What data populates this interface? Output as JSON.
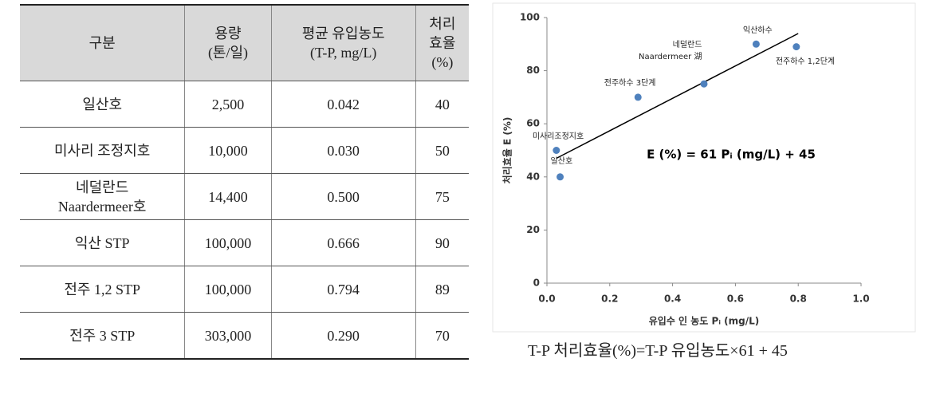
{
  "table": {
    "header": [
      "구분",
      "용량\n(톤/일)",
      "평균 유입농도\n(T-P, mg/L)",
      "처리\n효율\n(%)"
    ],
    "rows": [
      [
        "일산호",
        "2,500",
        "0.042",
        "40"
      ],
      [
        "미사리 조정지호",
        "10,000",
        "0.030",
        "50"
      ],
      [
        "네덜란드\nNaardermeer호",
        "14,400",
        "0.500",
        "75"
      ],
      [
        "익산 STP",
        "100,000",
        "0.666",
        "90"
      ],
      [
        "전주 1,2 STP",
        "100,000",
        "0.794",
        "89"
      ],
      [
        "전주 3 STP",
        "303,000",
        "0.290",
        "70"
      ]
    ]
  },
  "chart_data": {
    "type": "scatter",
    "x_label": "유입수 인 농도 Pᵢ (mg/L)",
    "y_label": "처리효율 E (%)",
    "annotation": "E (%) = 61 Pᵢ (mg/L) + 45",
    "caption": "T-P 처리효율(%)=T-P 유입농도×61 + 45",
    "x": [
      0.042,
      0.03,
      0.5,
      0.666,
      0.794,
      0.29
    ],
    "values": [
      40,
      50,
      75,
      90,
      89,
      70
    ],
    "labels": [
      "일산호",
      "미사리조정지호",
      "네덜란드\nNaardermeer 湖",
      "익산하수",
      "전주하수 1,2단계",
      "전주하수 3단계"
    ],
    "color": "#4f81bd",
    "trendline": {
      "x": [
        0.03,
        0.8
      ],
      "values": [
        47,
        94
      ],
      "color": "#000000"
    },
    "xlim": [
      0,
      1
    ],
    "ylim": [
      0,
      100
    ],
    "xticks": [
      {
        "value": 0,
        "label": "0.0"
      },
      {
        "value": 0.2,
        "label": "0.2"
      },
      {
        "value": 0.4,
        "label": "0.4"
      },
      {
        "value": 0.6,
        "label": "0.6"
      },
      {
        "value": 0.8,
        "label": "0.8"
      },
      {
        "value": 1,
        "label": "1.0"
      }
    ],
    "yticks": [
      0,
      20,
      40,
      60,
      80,
      100
    ],
    "grid": false
  }
}
